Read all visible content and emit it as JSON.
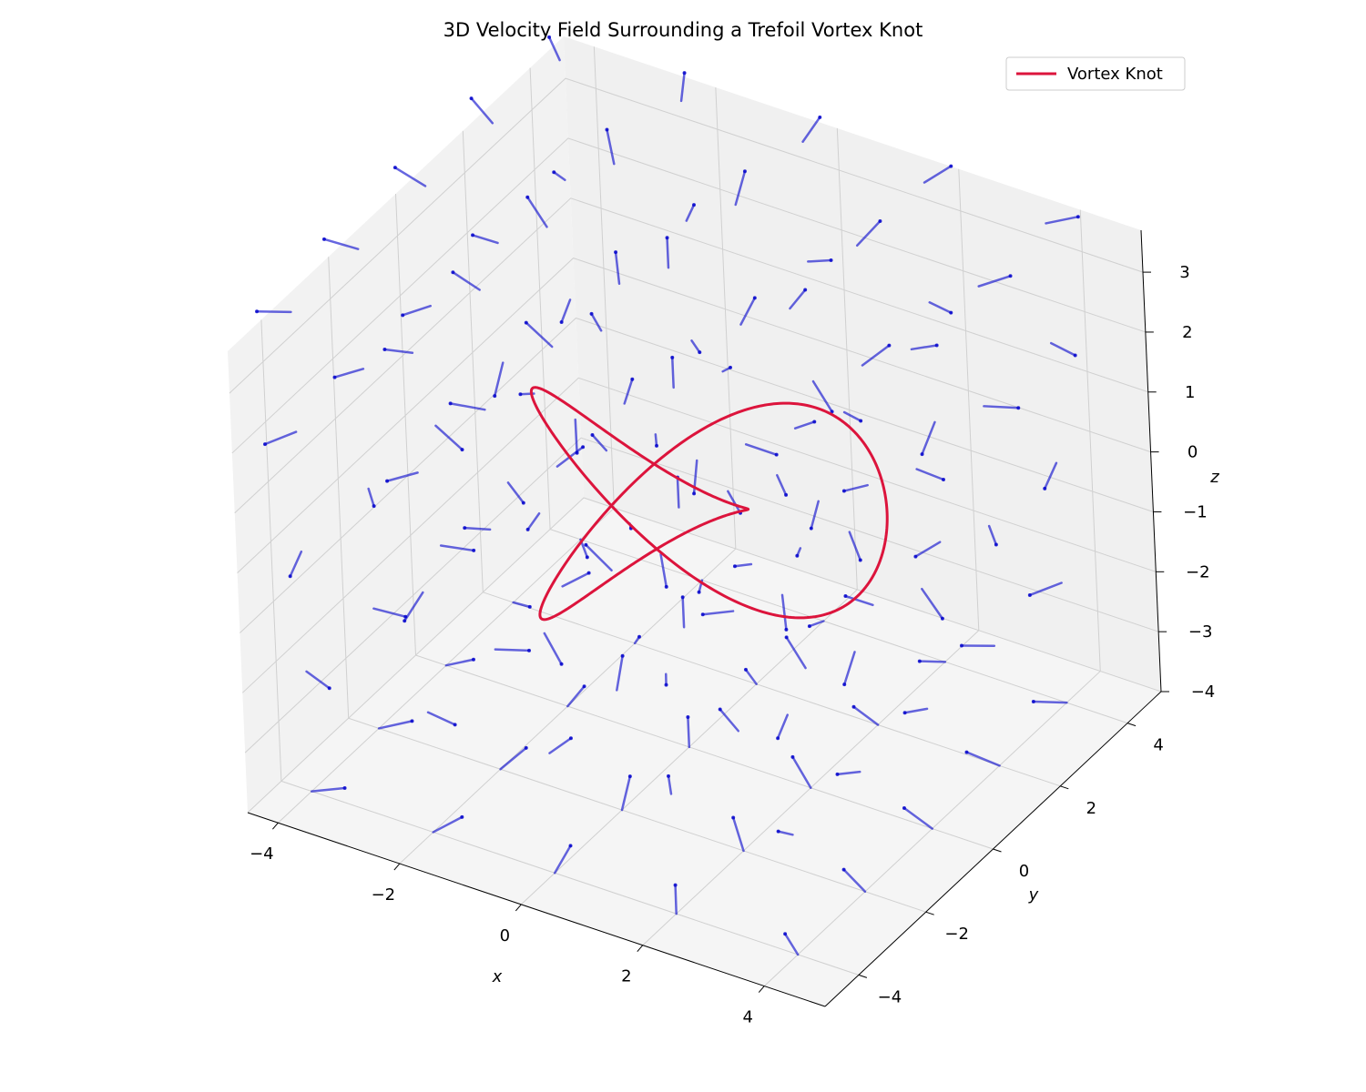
{
  "chart_data": {
    "type": "3d-quiver-line",
    "title": "3D Velocity Field Surrounding a Trefoil Vortex Knot",
    "xlabel": "x",
    "ylabel": "y",
    "zlabel": "z",
    "xlim": [
      -4.5,
      5
    ],
    "ylim": [
      -5,
      5
    ],
    "zlim": [
      -4,
      3.7
    ],
    "xticks": [
      -4,
      -2,
      0,
      2,
      4
    ],
    "yticks": [
      -4,
      -2,
      0,
      2,
      4
    ],
    "zticks": [
      -4,
      -3,
      -2,
      -1,
      0,
      1,
      2,
      3
    ],
    "xtick_labels": [
      "−4",
      "−2",
      "0",
      "2",
      "4"
    ],
    "ytick_labels": [
      "−4",
      "−2",
      "0",
      "2",
      "4"
    ],
    "ztick_labels": [
      "−4",
      "−3",
      "−2",
      "−1",
      "0",
      "1",
      "2",
      "3"
    ],
    "grid": true,
    "legend_position": "top-right",
    "series": [
      {
        "name": "Vortex Knot",
        "kind": "trefoil curve",
        "equation": "x = sin t + 2 sin 2t, y = cos t − 2 cos 2t, z = −sin 3t",
        "scale": 1.0,
        "color": "#dc143c"
      },
      {
        "name": "",
        "kind": "velocity field arrows (quiver)",
        "grid_values": [
          -4,
          -2,
          0,
          2,
          4
        ],
        "color": "#0000cc"
      }
    ]
  }
}
